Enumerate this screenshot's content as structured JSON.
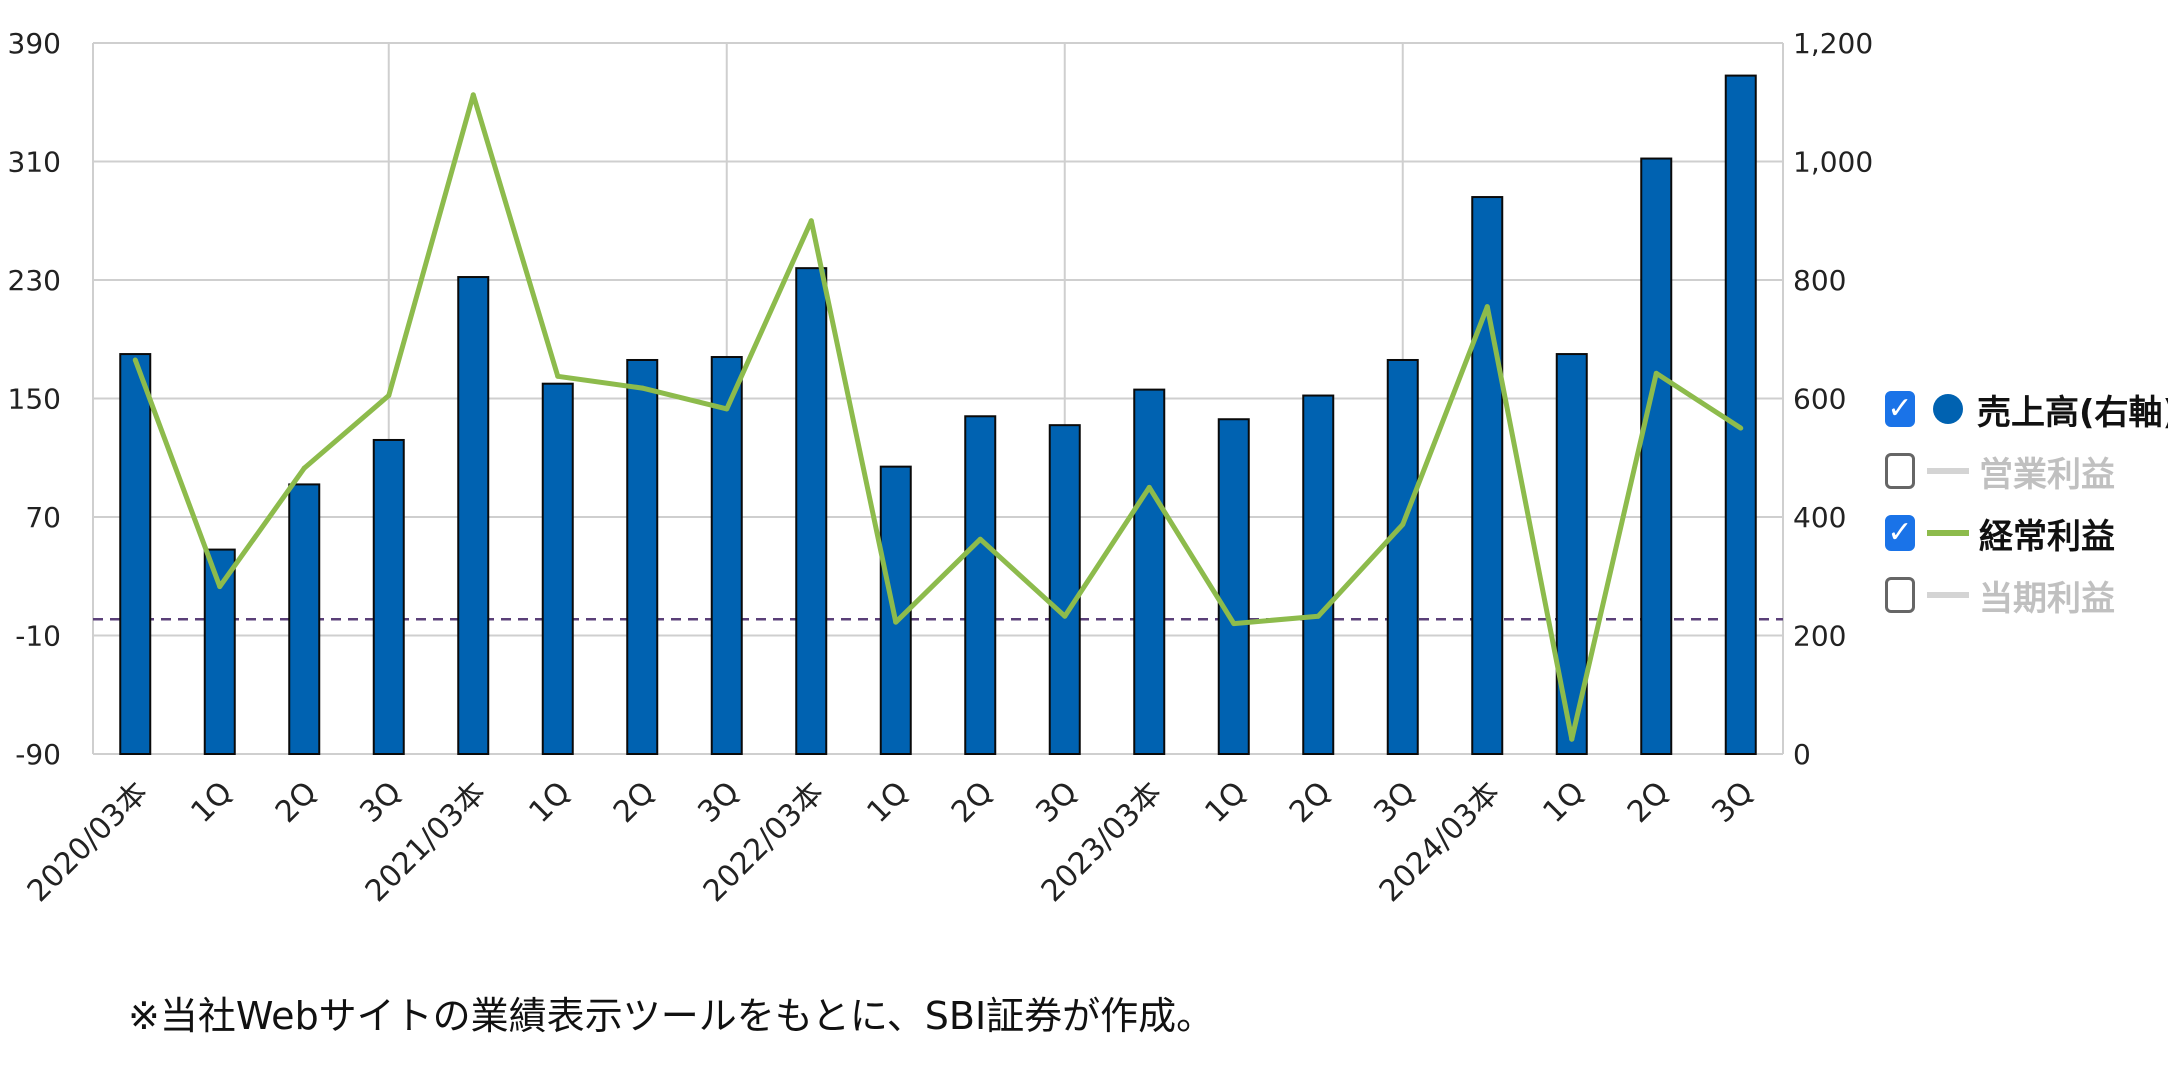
{
  "chart_data": {
    "type": "bar",
    "categories": [
      "2020/03本",
      "1Q",
      "2Q",
      "3Q",
      "2021/03本",
      "1Q",
      "2Q",
      "3Q",
      "2022/03本",
      "1Q",
      "2Q",
      "3Q",
      "2023/03本",
      "1Q",
      "2Q",
      "3Q",
      "2024/03本",
      "1Q",
      "2Q",
      "3Q"
    ],
    "series": [
      {
        "name": "売上高(右軸)",
        "type": "bar",
        "axis": "right",
        "color": "#0062b1",
        "values": [
          675,
          345,
          455,
          530,
          805,
          625,
          665,
          670,
          820,
          485,
          570,
          555,
          615,
          565,
          605,
          665,
          940,
          675,
          1005,
          1145
        ]
      },
      {
        "name": "経常利益",
        "type": "line",
        "axis": "left",
        "color": "#8dbb4c",
        "values": [
          176,
          23,
          103,
          152,
          355,
          165,
          157,
          143,
          270,
          -1,
          55,
          3,
          90,
          -2,
          3,
          65,
          212,
          -80,
          167,
          130
        ]
      }
    ],
    "y_left": {
      "ticks": [
        390,
        310,
        230,
        150,
        70,
        -10,
        -90
      ],
      "min": -90,
      "max": 390
    },
    "y_right": {
      "ticks": [
        "1,200",
        "1,000",
        "800",
        "600",
        "400",
        "200",
        "0"
      ],
      "min": 0,
      "max": 1200
    },
    "reference_line": {
      "axis": "left",
      "value": 1,
      "style": "dashed",
      "color": "#5a3f78"
    },
    "grid": true
  },
  "legend": [
    {
      "label": "売上高(右軸)",
      "checked": true,
      "marker": "dot",
      "color": "#0062b1",
      "text_color": "#111111"
    },
    {
      "label": "営業利益",
      "checked": false,
      "marker": "line",
      "color": "#d4d4d4",
      "text_color": "#c0c0c0"
    },
    {
      "label": "経常利益",
      "checked": true,
      "marker": "line",
      "color": "#8dbb4c",
      "text_color": "#111111"
    },
    {
      "label": "当期利益",
      "checked": false,
      "marker": "line",
      "color": "#d4d4d4",
      "text_color": "#c0c0c0"
    }
  ],
  "footnote": "※当社Webサイトの業績表示ツールをもとに、SBI証券が作成。"
}
